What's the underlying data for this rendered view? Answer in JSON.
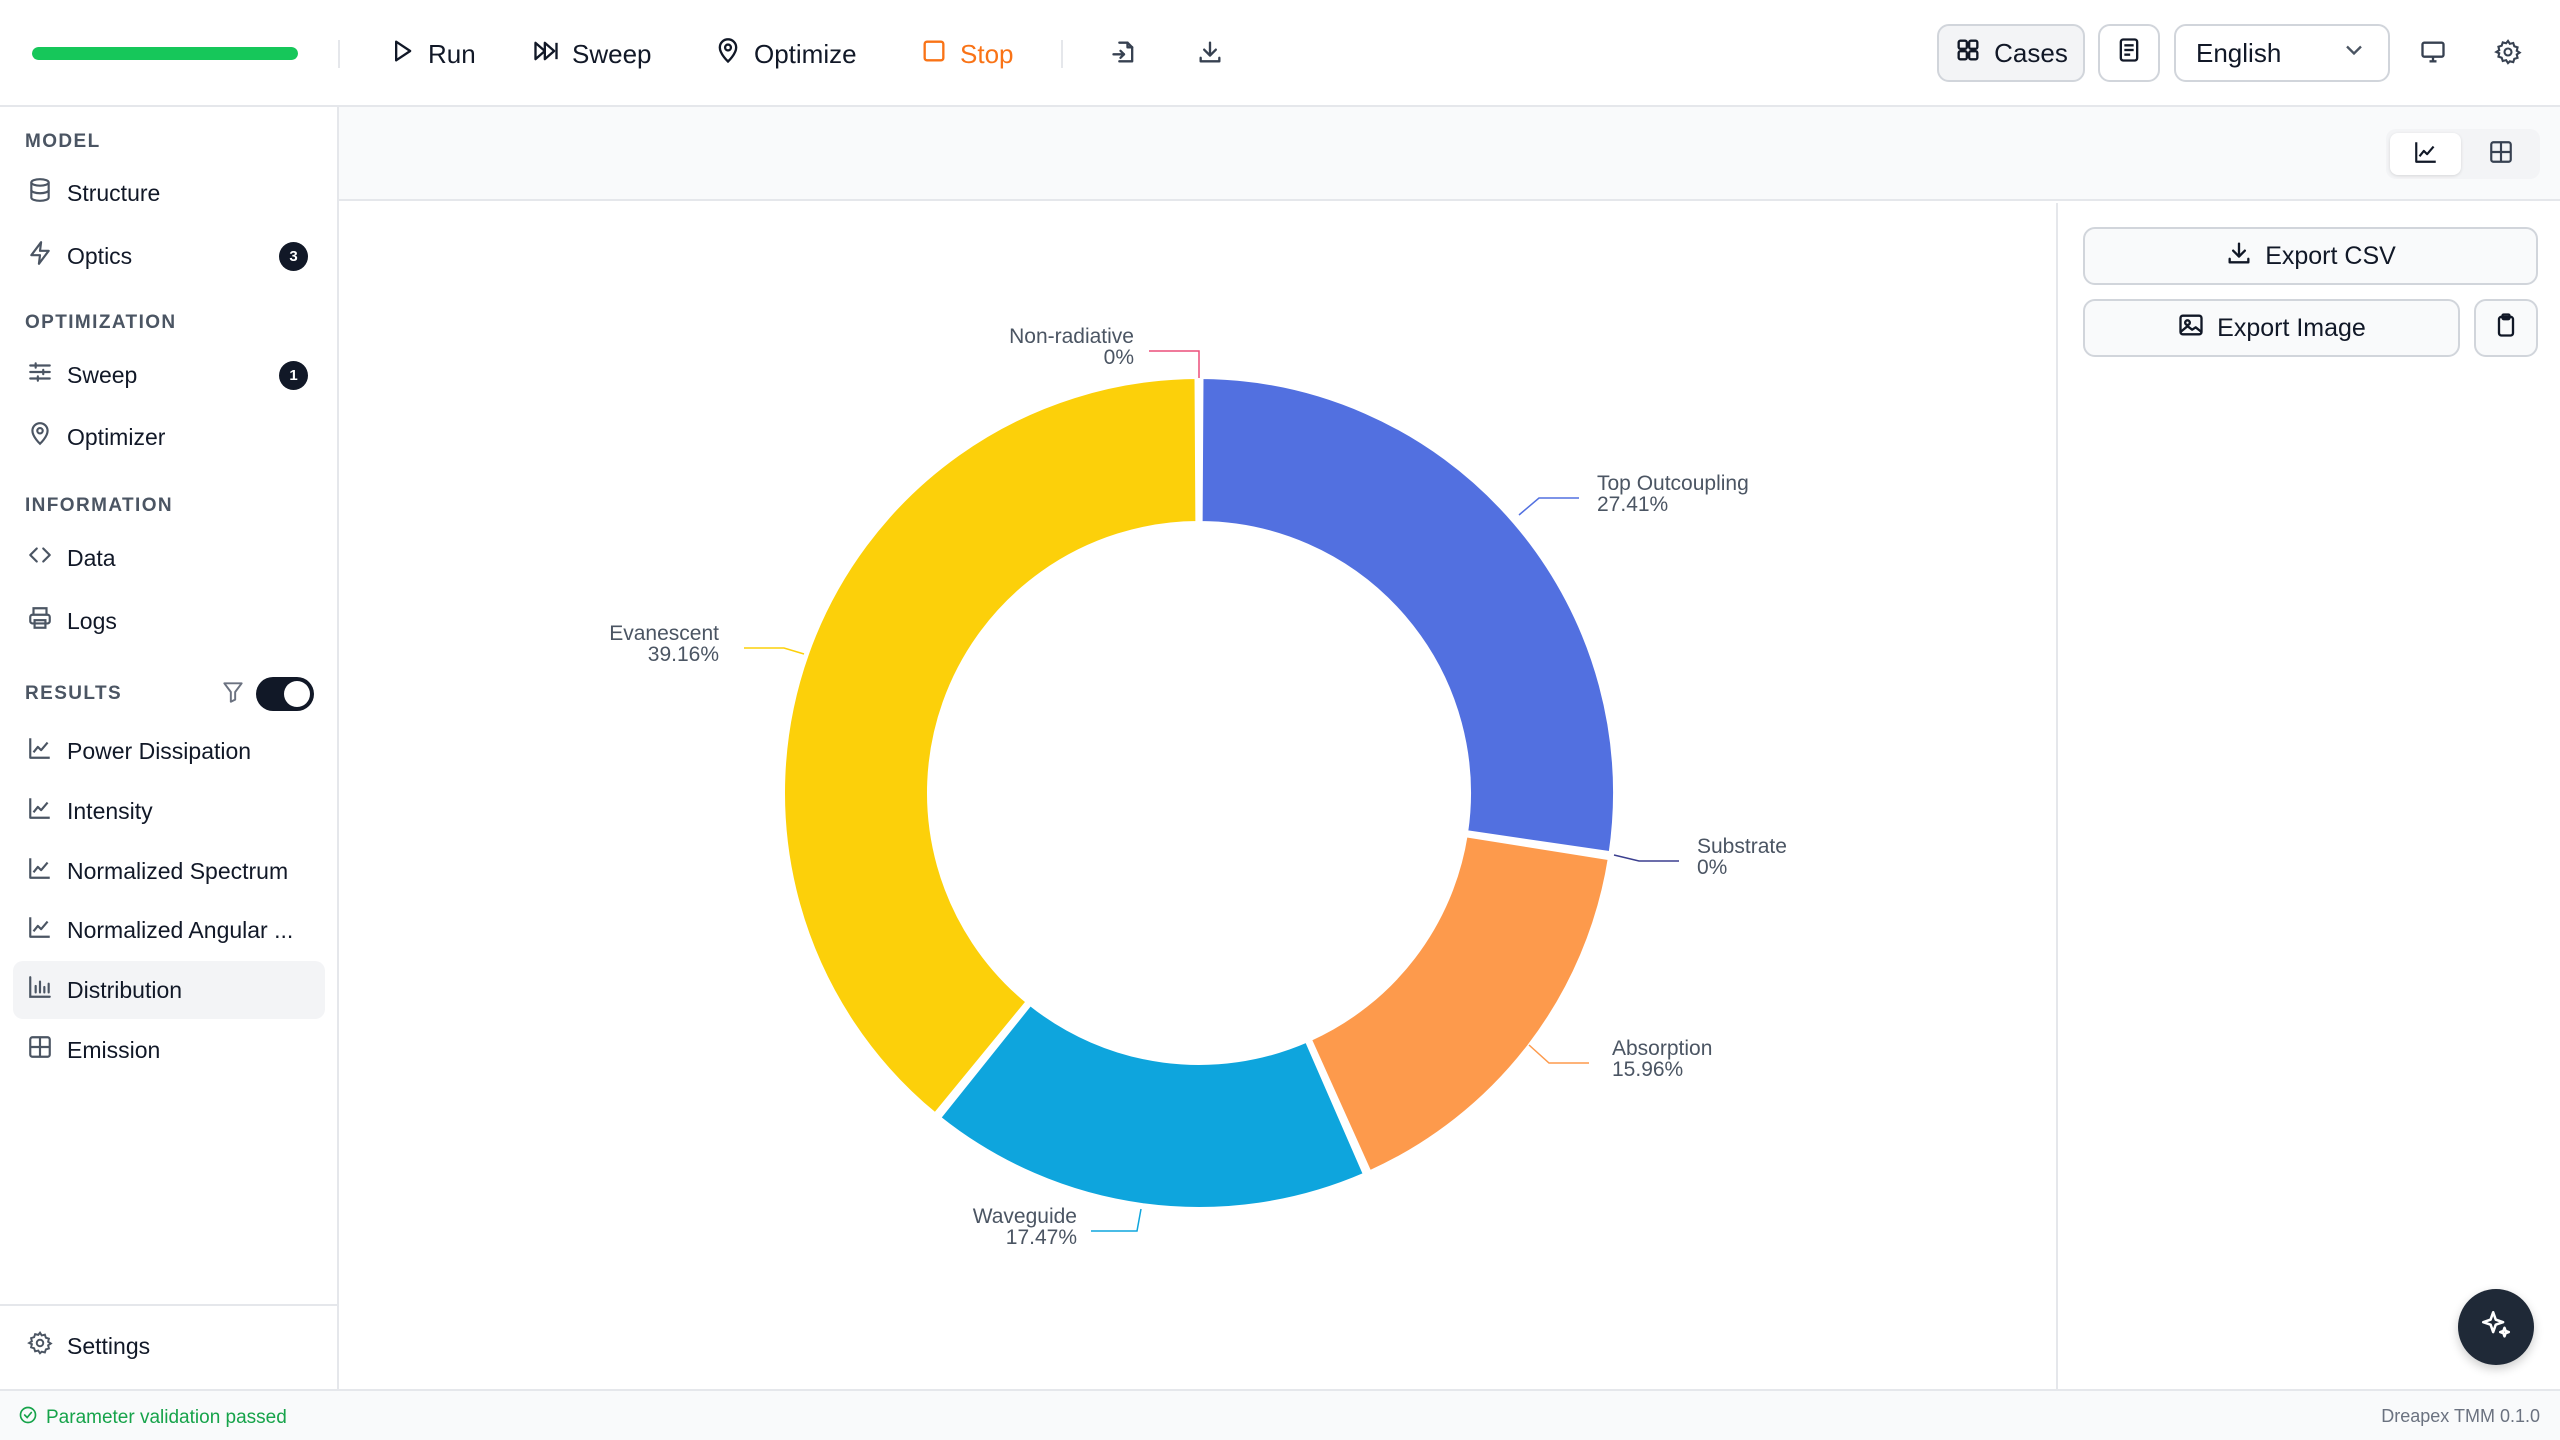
{
  "toolbar": {
    "progress": 1.0,
    "run_label": "Run",
    "sweep_label": "Sweep",
    "optimize_label": "Optimize",
    "stop_label": "Stop",
    "cases_label": "Cases",
    "language": "English"
  },
  "sidebar": {
    "model_title": "MODEL",
    "structure_label": "Structure",
    "optics_label": "Optics",
    "optics_badge": "3",
    "optimization_title": "OPTIMIZATION",
    "sweep_label": "Sweep",
    "sweep_badge": "1",
    "optimizer_label": "Optimizer",
    "information_title": "INFORMATION",
    "data_label": "Data",
    "logs_label": "Logs",
    "results_title": "RESULTS",
    "results_toggle_on": true,
    "results": [
      "Power Dissipation",
      "Intensity",
      "Normalized Spectrum",
      "Normalized Angular ...",
      "Distribution",
      "Emission"
    ],
    "active_result": "Distribution",
    "settings_label": "Settings"
  },
  "panel": {
    "export_csv_label": "Export CSV",
    "export_image_label": "Export Image"
  },
  "status": {
    "message": "Parameter validation passed",
    "version": "Dreapex TMM 0.1.0"
  },
  "colors": {
    "top_outcoupling": "#5270e0",
    "substrate": "#3b3f8f",
    "absorption": "#fd9a4c",
    "waveguide": "#0ea5dd",
    "evanescent": "#fcd00a",
    "non_radiative": "#ec4f7a",
    "progress": "#16c75a",
    "stop": "#f97316"
  },
  "chart_data": {
    "type": "pie",
    "donut": true,
    "title": "",
    "slices": [
      {
        "name": "Top Outcoupling",
        "value": 27.41,
        "label": "27.41%",
        "color": "#5270e0"
      },
      {
        "name": "Substrate",
        "value": 0,
        "label": "0%",
        "color": "#3b3f8f"
      },
      {
        "name": "Absorption",
        "value": 15.96,
        "label": "15.96%",
        "color": "#fd9a4c"
      },
      {
        "name": "Waveguide",
        "value": 17.47,
        "label": "17.47%",
        "color": "#0ea5dd"
      },
      {
        "name": "Evanescent",
        "value": 39.16,
        "label": "39.16%",
        "color": "#fcd00a"
      },
      {
        "name": "Non-radiative",
        "value": 0,
        "label": "0%",
        "color": "#ec4f7a"
      }
    ]
  }
}
